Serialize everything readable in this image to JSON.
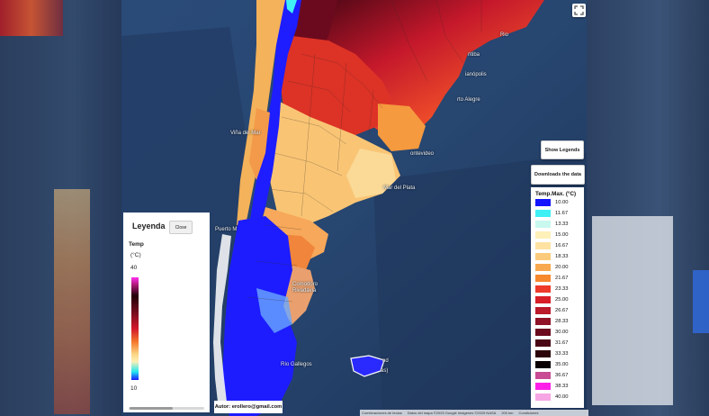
{
  "place_labels": {
    "rio": "Rio",
    "ritiba": "ritiba",
    "florianopolis": "ianópolis",
    "porto_alegre": "rto Alegre",
    "montevideo": "ontevideo",
    "mar_del_plata": "Mar del Plata",
    "vina_del_mar": "Viña del Mar",
    "puerto_montt": "Puerto M",
    "comodoro_rivadavia": "Comodoro Rivadavia",
    "rio_gallegos": "Río Gallegos",
    "islas_malvinas": "nd",
    "islas_malvinas_2": "as)"
  },
  "buttons": {
    "show_legends": "Show Legends",
    "download_data": "Downloads the data"
  },
  "legend_panel": {
    "title": "Leyenda",
    "close_label": "Close",
    "variable": "Temp",
    "unit": "(°C)",
    "max": "40",
    "min": "10"
  },
  "author": "Autor: erollero@gmail.com",
  "colorbar": {
    "title": "Temp.Max. (°C)",
    "entries": [
      {
        "label": "10.00",
        "color": "#1414ff"
      },
      {
        "label": "11.67",
        "color": "#3ff0f5"
      },
      {
        "label": "13.33",
        "color": "#c8f8ee"
      },
      {
        "label": "15.00",
        "color": "#fdf0b8"
      },
      {
        "label": "16.67",
        "color": "#fde2a2"
      },
      {
        "label": "18.33",
        "color": "#fbcb7b"
      },
      {
        "label": "20.00",
        "color": "#f8a94f"
      },
      {
        "label": "21.67",
        "color": "#f6882e"
      },
      {
        "label": "23.33",
        "color": "#ee3a2a"
      },
      {
        "label": "25.00",
        "color": "#d81e27"
      },
      {
        "label": "26.67",
        "color": "#ba1a2a"
      },
      {
        "label": "28.33",
        "color": "#8f1226"
      },
      {
        "label": "30.00",
        "color": "#6c0b1e"
      },
      {
        "label": "31.67",
        "color": "#4a0614"
      },
      {
        "label": "33.33",
        "color": "#2b0309"
      },
      {
        "label": "35.00",
        "color": "#0a0002"
      },
      {
        "label": "36.67",
        "color": "#c94b93"
      },
      {
        "label": "38.33",
        "color": "#ff1fe8"
      },
      {
        "label": "40.00",
        "color": "#f6a6e4"
      }
    ]
  },
  "attribution": {
    "shortcuts": "Combinaciones de teclas",
    "map_data": "Datos del mapa ©2025 Google Imágenes ©2025 NASA",
    "scale": "200 km",
    "terms": "Condiciones"
  }
}
